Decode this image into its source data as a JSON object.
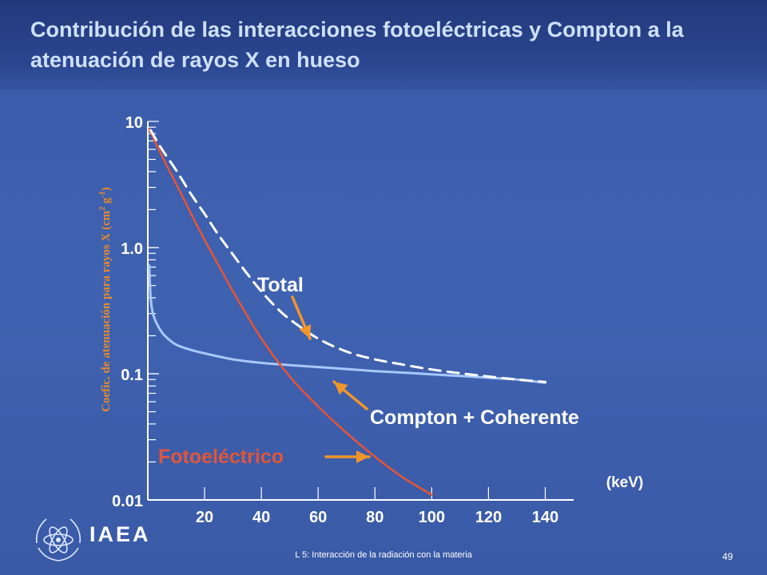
{
  "slide": {
    "title": "Contribución de las interacciones fotoeléctricas y Compton a la atenuación de rayos X en hueso",
    "footer": "L 5: Interacción de la radiación con la materia",
    "page_number": "49",
    "logo_text": "IAEA"
  },
  "colors": {
    "total": "#ffffff",
    "photoelectric": "#e0553a",
    "compton": "#a8c8ff",
    "ylabel": "#e88a2a",
    "arrow": "#f2952b",
    "axis": "#ffffff"
  },
  "chart_data": {
    "type": "line",
    "xlabel": "(keV)",
    "ylabel": "Coefic. de atenuación para rayos X (cm² g⁻¹)",
    "ylabel_main": "Coefic. de atenuación para rayos X (cm",
    "ylabel_sup1": "2",
    "ylabel_mid": " g",
    "ylabel_sup2": "-1",
    "ylabel_end": ")",
    "xlim": [
      0,
      150
    ],
    "ylim": [
      0.01,
      10
    ],
    "yscale": "log",
    "x_ticks": [
      20,
      40,
      60,
      80,
      100,
      120,
      140
    ],
    "x_tick_labels": [
      "20",
      "40",
      "60",
      "80",
      "100",
      "120",
      "140"
    ],
    "y_ticks": [
      10,
      1,
      0.1,
      0.01
    ],
    "y_tick_labels": [
      "10",
      "1.0",
      "0.1",
      "0.01"
    ],
    "grid": false,
    "series": [
      {
        "name": "Total",
        "style": "dashed",
        "x": [
          1,
          5,
          10,
          15,
          20,
          25,
          30,
          35,
          40,
          45,
          50,
          60,
          70,
          80,
          90,
          100,
          110,
          120,
          130,
          140
        ],
        "y": [
          8.5,
          6.0,
          4.1,
          2.7,
          1.85,
          1.25,
          0.88,
          0.62,
          0.45,
          0.34,
          0.27,
          0.19,
          0.15,
          0.13,
          0.118,
          0.108,
          0.101,
          0.095,
          0.09,
          0.086
        ]
      },
      {
        "name": "Compton + Coherente",
        "style": "solid",
        "x": [
          0.5,
          1,
          2,
          4,
          6,
          10,
          15,
          20,
          30,
          40,
          50,
          60,
          70,
          80,
          90,
          100,
          110,
          120,
          130,
          140
        ],
        "y": [
          0.72,
          0.4,
          0.29,
          0.23,
          0.2,
          0.17,
          0.155,
          0.145,
          0.13,
          0.122,
          0.117,
          0.113,
          0.109,
          0.105,
          0.102,
          0.099,
          0.096,
          0.093,
          0.09,
          0.085
        ]
      },
      {
        "name": "Fotoeléctrico",
        "style": "solid",
        "x": [
          0.5,
          5,
          10,
          15,
          20,
          25,
          30,
          40,
          50,
          60,
          70,
          80,
          90,
          100
        ],
        "y": [
          8.7,
          5.3,
          3.2,
          1.9,
          1.15,
          0.72,
          0.45,
          0.19,
          0.095,
          0.055,
          0.034,
          0.022,
          0.015,
          0.011
        ]
      }
    ],
    "annotations": [
      {
        "text": "Total",
        "series": "Total"
      },
      {
        "text": "Compton + Coherente",
        "series": "Compton + Coherente"
      },
      {
        "text": "Fotoeléctrico",
        "series": "Fotoeléctrico"
      }
    ]
  }
}
